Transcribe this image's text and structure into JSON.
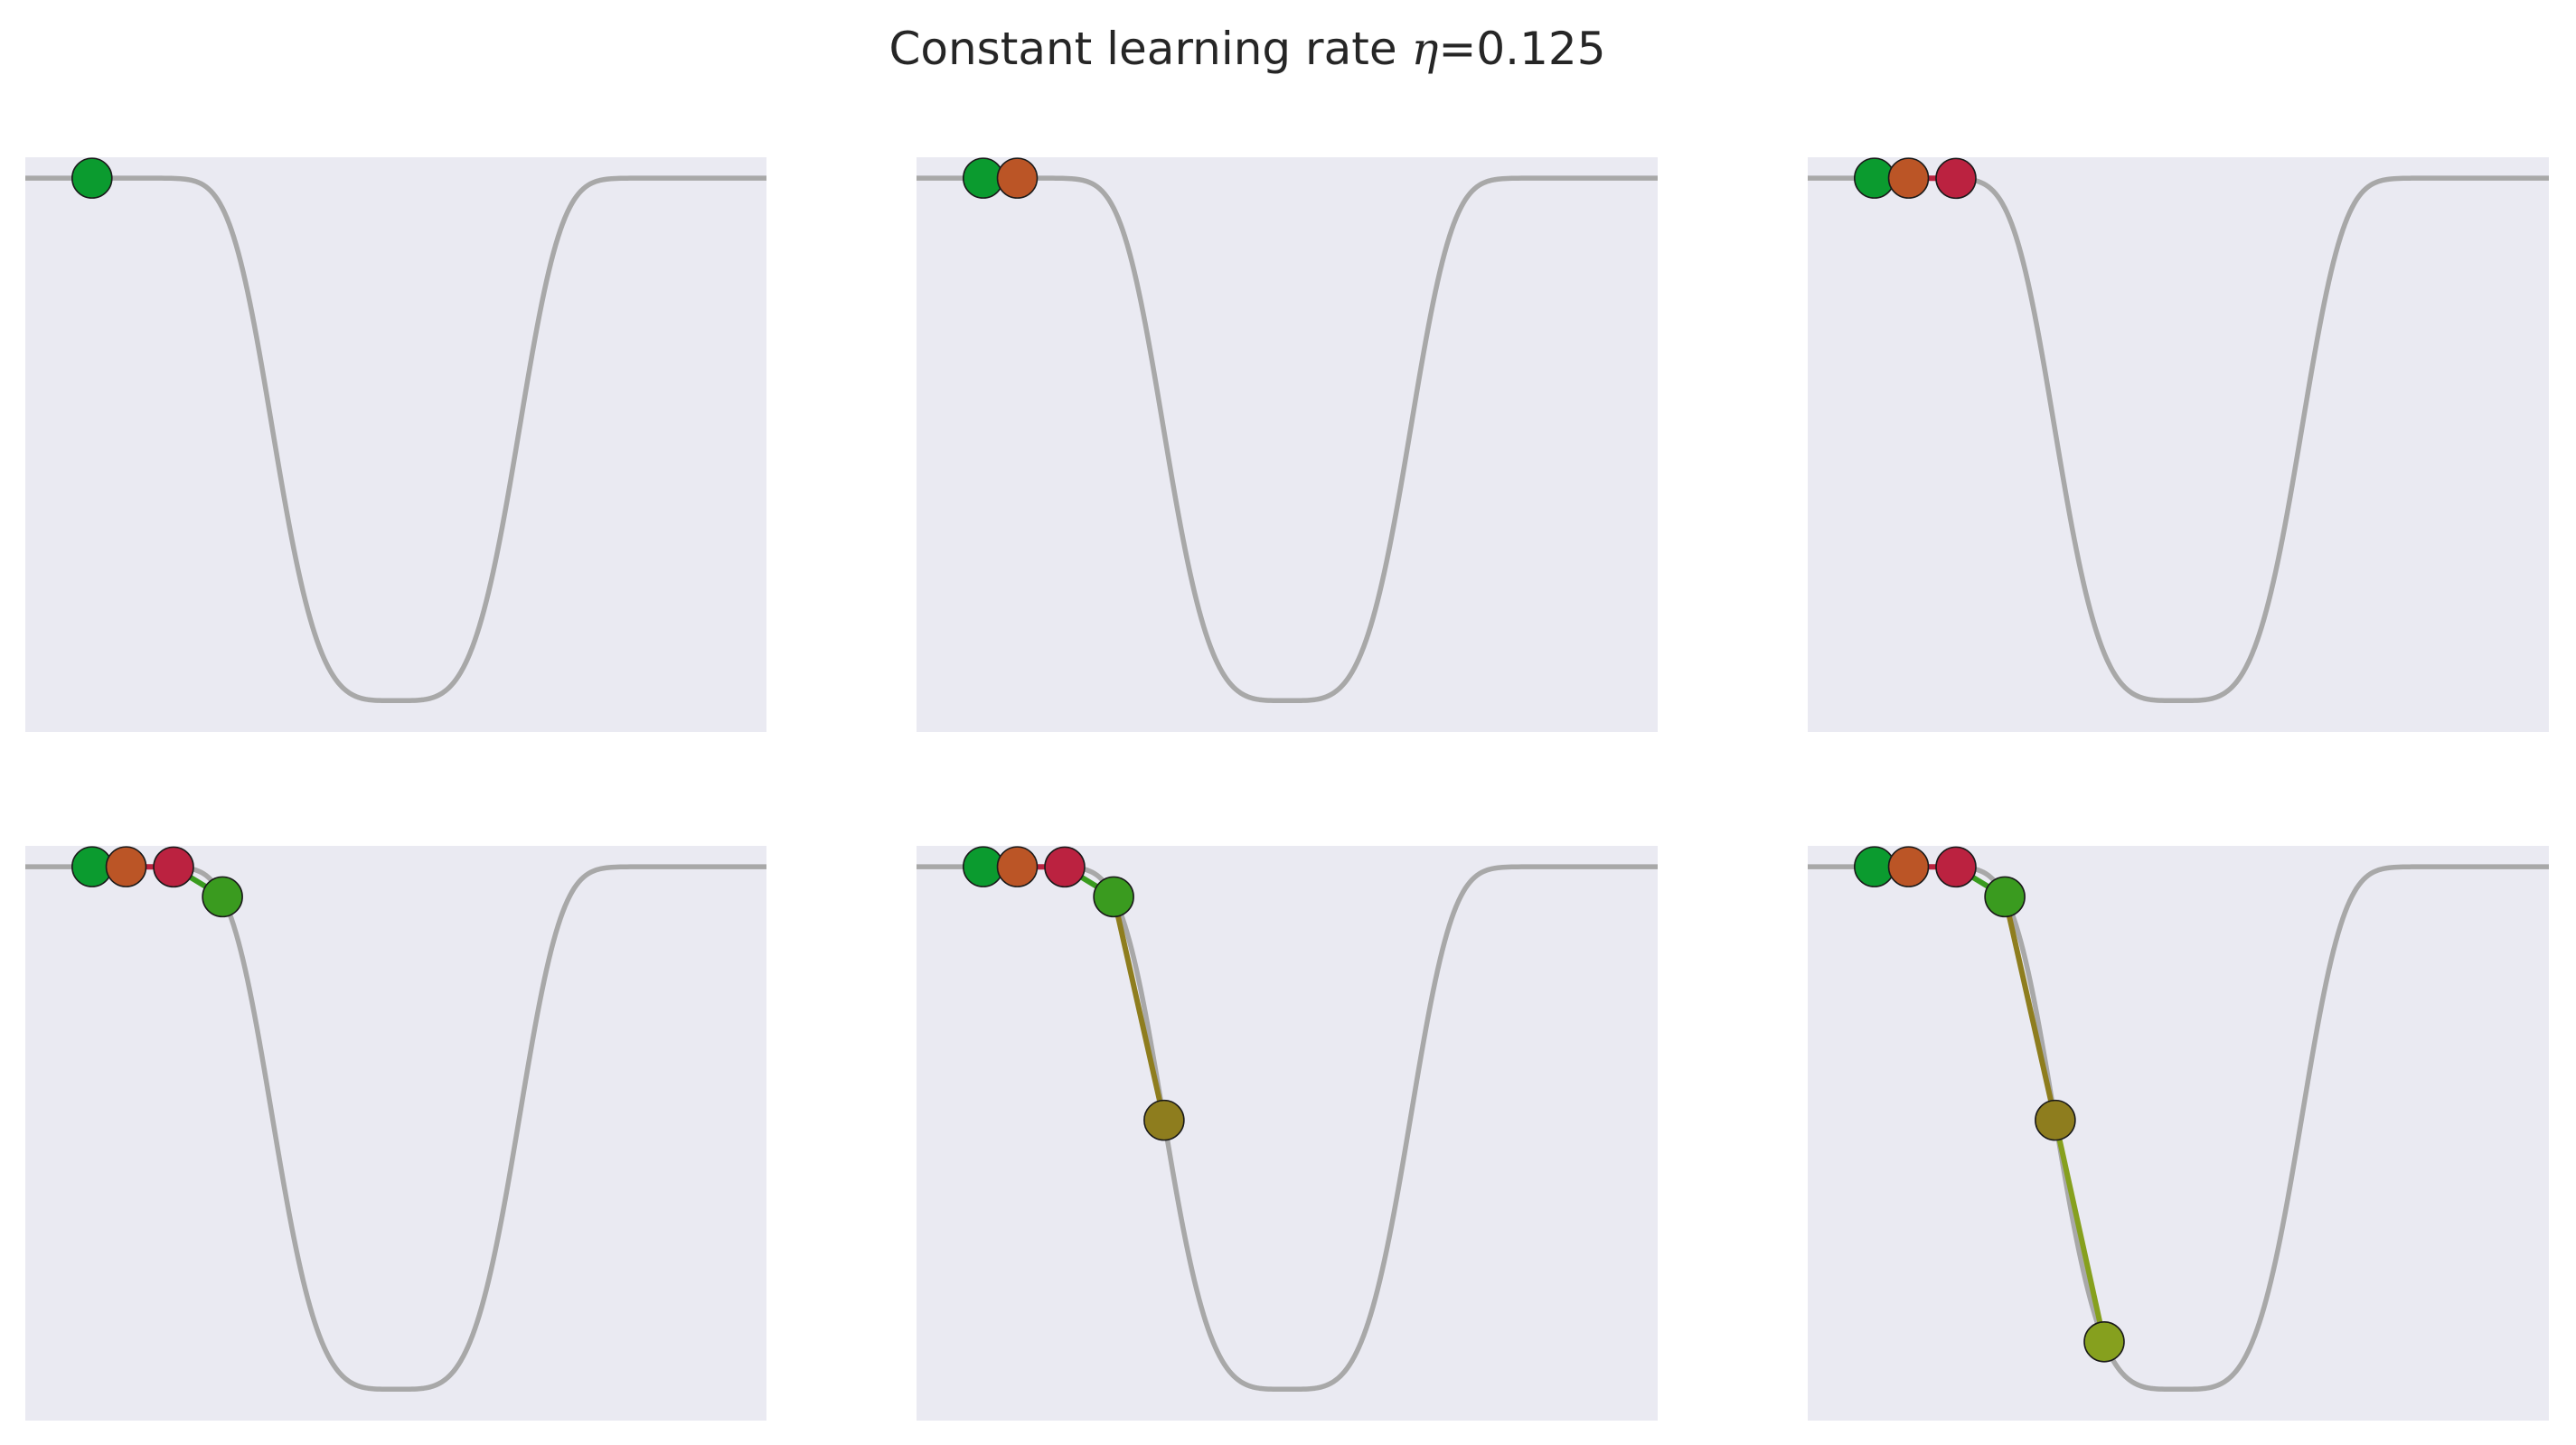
{
  "figure": {
    "title_prefix": "Constant learning rate ",
    "title_symbol": "η",
    "title_value": "=0.125"
  },
  "chart_data": {
    "type": "line",
    "title": "Constant learning rate η=0.125",
    "learning_rate": 0.125,
    "subplot_grid": "2x3",
    "grid": false,
    "axes_visible": false,
    "background_color": "#eaeaf2",
    "curve": {
      "function": "-exp(-(x/0.9)^4)",
      "x_range": [
        -2.5,
        2.5
      ],
      "ylim": [
        -1.06,
        0.04
      ],
      "color": "#a8a8a8"
    },
    "iterates": {
      "x": [
        -2.05,
        -1.82,
        -1.5,
        -1.17,
        -0.83,
        -0.5
      ],
      "colors": [
        "#0b9b2f",
        "#bb5526",
        "#bb2240",
        "#3a9b1f",
        "#8e7d1e",
        "#86a01e"
      ]
    },
    "panels": [
      {
        "steps_shown": 1
      },
      {
        "steps_shown": 2
      },
      {
        "steps_shown": 3
      },
      {
        "steps_shown": 4
      },
      {
        "steps_shown": 5
      },
      {
        "steps_shown": 6
      }
    ]
  }
}
